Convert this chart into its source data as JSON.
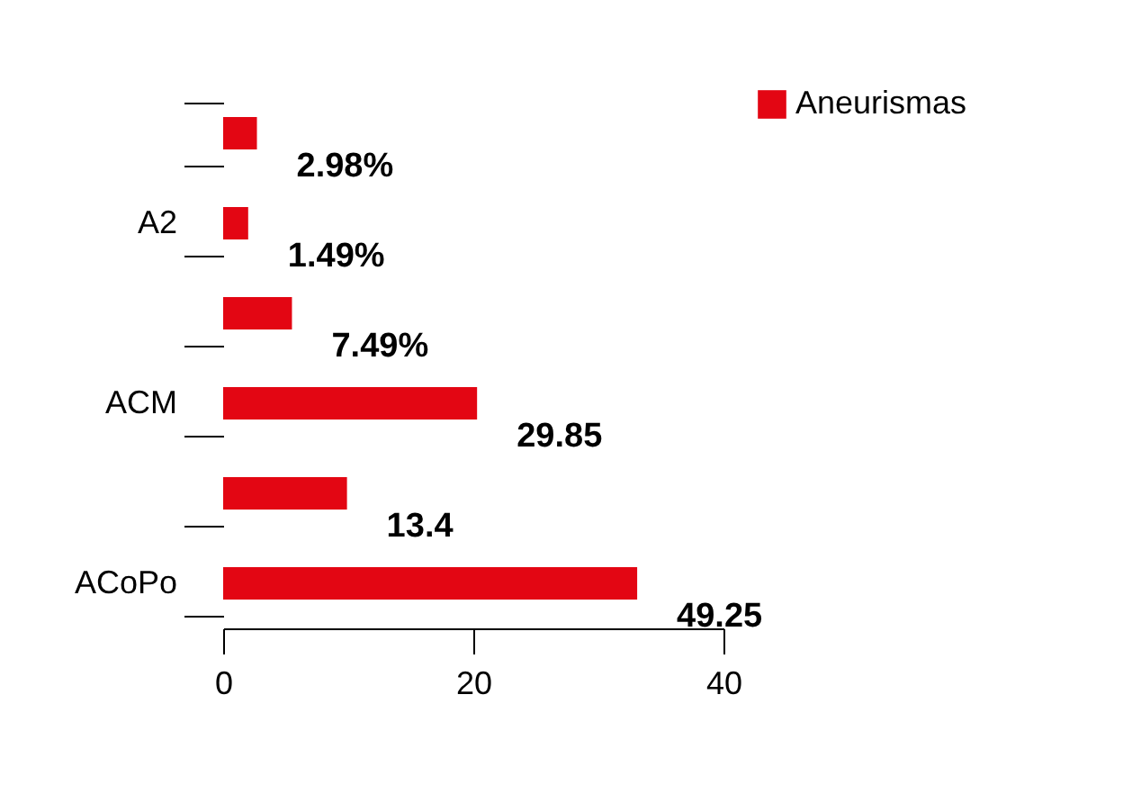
{
  "chart_data": {
    "type": "bar",
    "orientation": "horizontal",
    "categories": [
      null,
      "A2",
      null,
      "ACM",
      null,
      "ACoPo"
    ],
    "series": [
      {
        "name": "Aneurismas",
        "color": "#e30613",
        "values": [
          2.7,
          2.0,
          5.5,
          20.3,
          9.9,
          33.1
        ]
      }
    ],
    "value_labels": [
      "2.98%",
      "1.49%",
      "7.49%",
      "29.85",
      "13.4",
      "49.25"
    ],
    "xlim": [
      0,
      40
    ],
    "xticks": [
      0,
      20,
      40
    ],
    "grid": false,
    "legend": "right"
  }
}
